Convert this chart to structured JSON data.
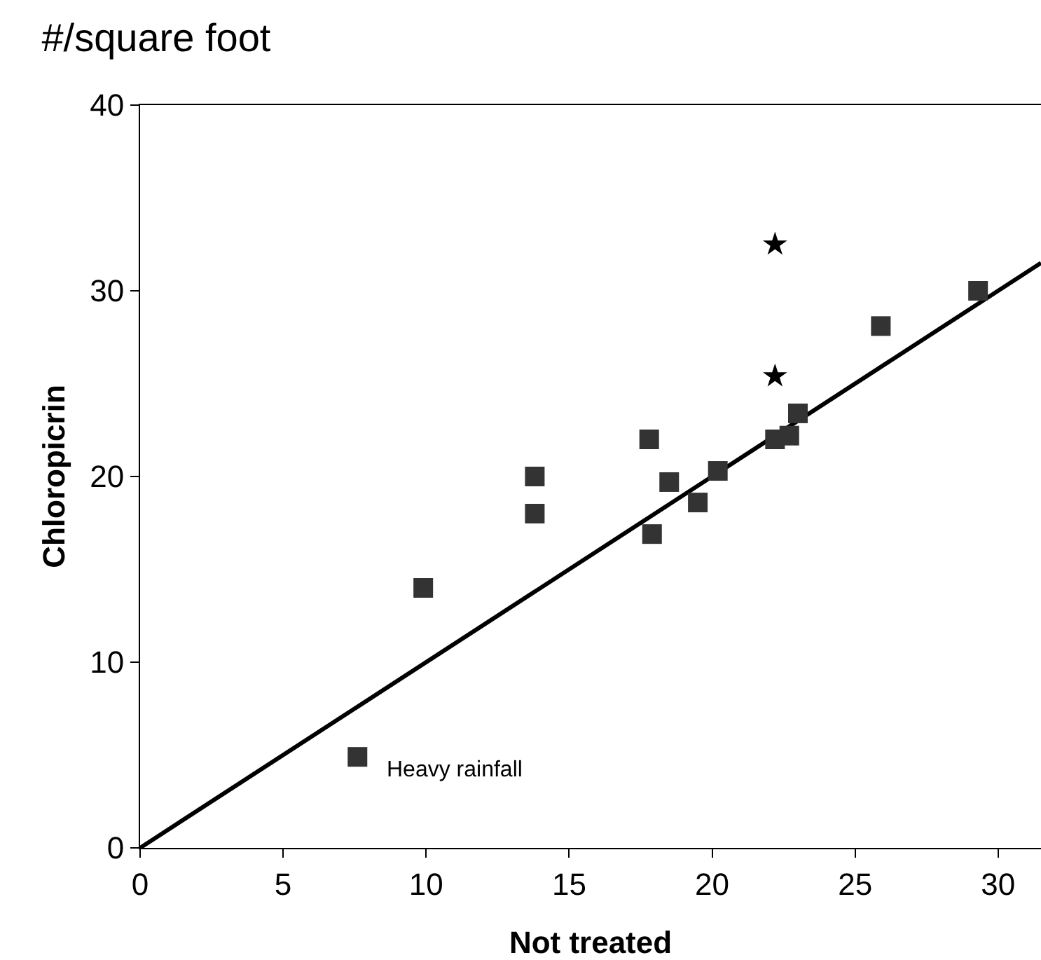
{
  "chart_data": {
    "type": "scatter",
    "title": "#/square foot",
    "xlabel": "Not treated",
    "ylabel": "Chloropicrin",
    "xlim": [
      0,
      31.5
    ],
    "ylim": [
      0,
      40
    ],
    "xticks": [
      0,
      5,
      10,
      15,
      20,
      25,
      30
    ],
    "yticks": [
      0,
      10,
      20,
      30,
      40
    ],
    "grid": false,
    "series": [
      {
        "type": "line",
        "color": "#000000",
        "marker": "none",
        "x": [
          0,
          31.5
        ],
        "values": [
          0,
          31.5
        ]
      },
      {
        "color": "#333333",
        "marker": "square",
        "x": [
          7.6,
          9.9,
          13.8,
          13.8,
          17.8,
          17.9,
          18.5,
          19.5,
          20.2,
          22.2,
          22.7,
          23.0,
          25.9,
          29.3
        ],
        "values": [
          4.9,
          14.0,
          20.0,
          18.0,
          22.0,
          16.9,
          19.7,
          18.6,
          20.3,
          22.0,
          22.2,
          23.4,
          28.1,
          30.0
        ]
      },
      {
        "color": "#000000",
        "marker": "star",
        "x": [
          22.2,
          22.2
        ],
        "values": [
          32.5,
          25.4
        ]
      }
    ],
    "annotations": [
      "Heavy rainfall"
    ]
  }
}
